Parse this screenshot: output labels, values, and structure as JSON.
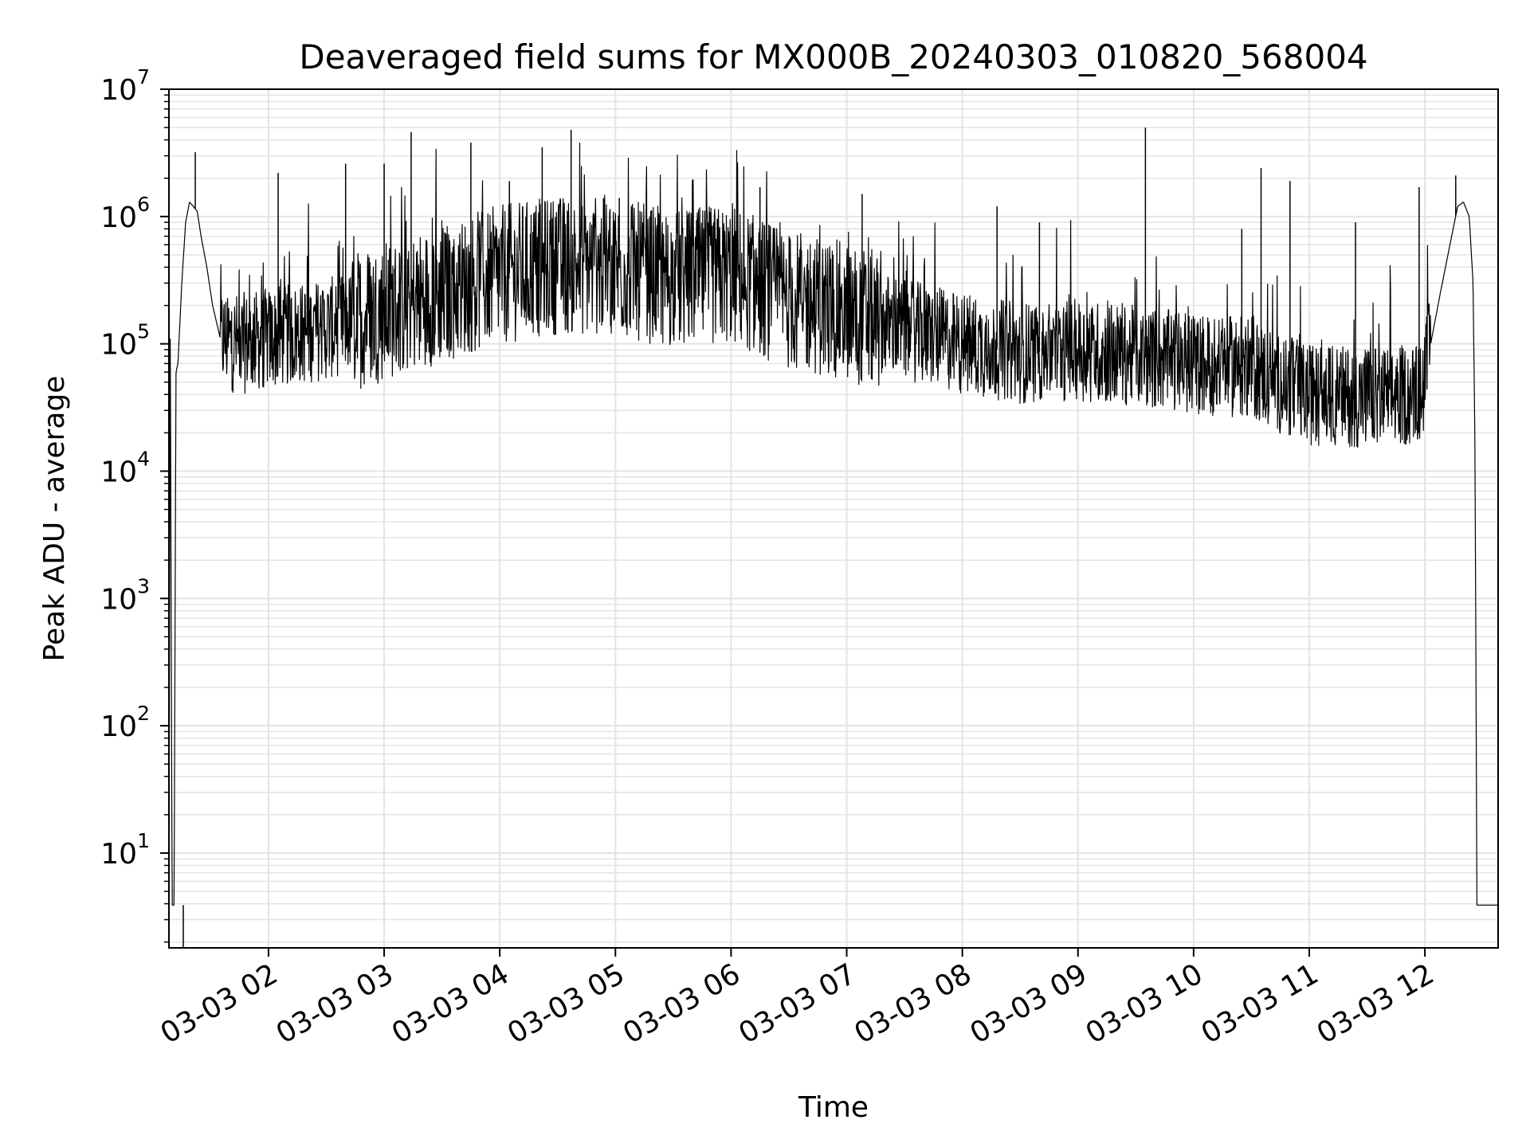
{
  "chart_data": {
    "type": "line",
    "title": "Deaveraged field sums for MX000B_20240303_010820_568004",
    "xlabel": "Time",
    "ylabel": "Peak ADU - average",
    "yscale": "log",
    "ylim": [
      1.8,
      10000000
    ],
    "xlim": [
      "2024-03-03 01:08:20",
      "2024-03-03 12:38:00"
    ],
    "grid": true,
    "line_color": "#000000",
    "grid_color": "#e3e3e3",
    "x_ticks": [
      {
        "t": "2024-03-03 02:00",
        "label": "03-03 02"
      },
      {
        "t": "2024-03-03 03:00",
        "label": "03-03 03"
      },
      {
        "t": "2024-03-03 04:00",
        "label": "03-03 04"
      },
      {
        "t": "2024-03-03 05:00",
        "label": "03-03 05"
      },
      {
        "t": "2024-03-03 06:00",
        "label": "03-03 06"
      },
      {
        "t": "2024-03-03 07:00",
        "label": "03-03 07"
      },
      {
        "t": "2024-03-03 08:00",
        "label": "03-03 08"
      },
      {
        "t": "2024-03-03 09:00",
        "label": "03-03 09"
      },
      {
        "t": "2024-03-03 10:00",
        "label": "03-03 10"
      },
      {
        "t": "2024-03-03 11:00",
        "label": "03-03 11"
      },
      {
        "t": "2024-03-03 12:00",
        "label": "03-03 12"
      }
    ],
    "y_ticks": [
      {
        "value": 10,
        "base": "10",
        "exp": "1"
      },
      {
        "value": 100,
        "base": "10",
        "exp": "2"
      },
      {
        "value": 1000,
        "base": "10",
        "exp": "3"
      },
      {
        "value": 10000,
        "base": "10",
        "exp": "4"
      },
      {
        "value": 100000,
        "base": "10",
        "exp": "5"
      },
      {
        "value": 1000000,
        "base": "10",
        "exp": "6"
      },
      {
        "value": 10000000,
        "base": "10",
        "exp": "7"
      }
    ],
    "series": [
      {
        "points": [
          [
            "2024-03-03 01:08:20",
            3.9
          ],
          [
            "2024-03-03 01:09:00",
            150000
          ],
          [
            "2024-03-03 01:10:00",
            3.9
          ],
          [
            "2024-03-03 01:11:00",
            3.9
          ],
          [
            "2024-03-03 01:12:00",
            60000
          ],
          [
            "2024-03-03 01:13:00",
            70000
          ],
          [
            "2024-03-03 01:15:00",
            300000
          ],
          [
            "2024-03-03 01:17:00",
            900000
          ],
          [
            "2024-03-03 01:19:00",
            1300000
          ],
          [
            "2024-03-03 01:21:00",
            1200000
          ],
          [
            "2024-03-03 01:23:00",
            1100000
          ],
          [
            "2024-03-03 01:25:00",
            700000
          ],
          [
            "2024-03-03 01:28:00",
            400000
          ],
          [
            "2024-03-03 01:31:00",
            200000
          ],
          [
            "2024-03-03 01:35:00",
            110000
          ],
          [
            "2024-03-03 01:45:00",
            100000
          ],
          [
            "2024-03-03 02:00:00",
            110000
          ],
          [
            "2024-03-03 02:30:00",
            130000
          ],
          [
            "2024-03-03 03:00:00",
            180000
          ],
          [
            "2024-03-03 03:30:00",
            250000
          ],
          [
            "2024-03-03 04:00:00",
            350000
          ],
          [
            "2024-03-03 04:30:00",
            420000
          ],
          [
            "2024-03-03 05:00:00",
            400000
          ],
          [
            "2024-03-03 05:30:00",
            320000
          ],
          [
            "2024-03-03 06:00:00",
            350000
          ],
          [
            "2024-03-03 06:30:00",
            220000
          ],
          [
            "2024-03-03 07:00:00",
            180000
          ],
          [
            "2024-03-03 07:30:00",
            130000
          ],
          [
            "2024-03-03 08:00:00",
            100000
          ],
          [
            "2024-03-03 08:30:00",
            85000
          ],
          [
            "2024-03-03 09:00:00",
            90000
          ],
          [
            "2024-03-03 09:30:00",
            80000
          ],
          [
            "2024-03-03 10:00:00",
            70000
          ],
          [
            "2024-03-03 10:30:00",
            65000
          ],
          [
            "2024-03-03 10:50:00",
            45000
          ],
          [
            "2024-03-03 11:00:00",
            40000
          ],
          [
            "2024-03-03 11:30:00",
            38000
          ],
          [
            "2024-03-03 11:58:00",
            40000
          ],
          [
            "2024-03-03 12:03:00",
            100000
          ],
          [
            "2024-03-03 12:08:00",
            250000
          ],
          [
            "2024-03-03 12:13:00",
            600000
          ],
          [
            "2024-03-03 12:17:00",
            1200000
          ],
          [
            "2024-03-03 12:20:00",
            1300000
          ],
          [
            "2024-03-03 12:23:00",
            1000000
          ],
          [
            "2024-03-03 12:25:00",
            300000
          ],
          [
            "2024-03-03 12:26:00",
            15000
          ],
          [
            "2024-03-03 12:27:00",
            3.9
          ],
          [
            "2024-03-03 12:38:00",
            3.9
          ]
        ],
        "spikes": [
          [
            "2024-03-03 01:22:00",
            3200000
          ],
          [
            "2024-03-03 02:05:00",
            2200000
          ],
          [
            "2024-03-03 02:40:00",
            2600000
          ],
          [
            "2024-03-03 03:00:00",
            2600000
          ],
          [
            "2024-03-03 03:14:00",
            4600000
          ],
          [
            "2024-03-03 03:45:00",
            3800000
          ],
          [
            "2024-03-03 04:05:00",
            1900000
          ],
          [
            "2024-03-03 04:22:00",
            3500000
          ],
          [
            "2024-03-03 04:37:00",
            4800000
          ],
          [
            "2024-03-03 05:02:00",
            1400000
          ],
          [
            "2024-03-03 06:15:00",
            1700000
          ],
          [
            "2024-03-03 07:08:00",
            1500000
          ],
          [
            "2024-03-03 08:18:00",
            1200000
          ],
          [
            "2024-03-03 08:40:00",
            900000
          ],
          [
            "2024-03-03 09:35:00",
            5000000
          ],
          [
            "2024-03-03 10:25:00",
            800000
          ],
          [
            "2024-03-03 10:35:00",
            2400000
          ],
          [
            "2024-03-03 10:50:00",
            1900000
          ],
          [
            "2024-03-03 11:24:00",
            900000
          ],
          [
            "2024-03-03 11:57:00",
            1700000
          ],
          [
            "2024-03-03 12:16:00",
            2100000
          ]
        ]
      }
    ]
  }
}
